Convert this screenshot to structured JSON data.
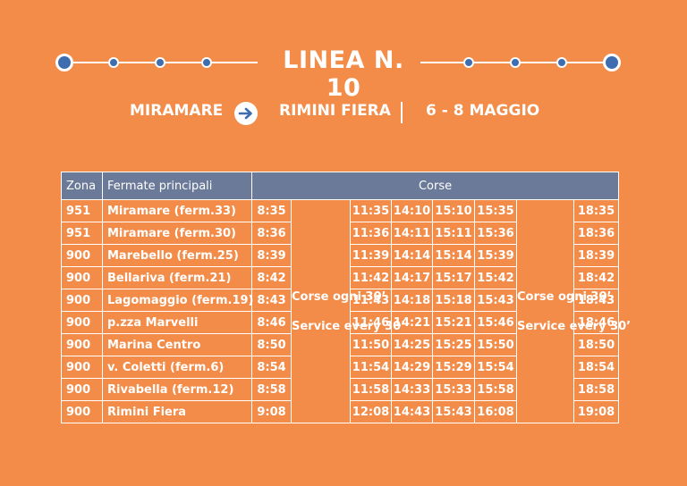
{
  "title": "LINEA N. 10",
  "route": {
    "from": "MIRAMARE",
    "to": "RIMINI FIERA",
    "dates": "6 - 8 MAGGIO",
    "arrow_icon": "arrow-right-icon"
  },
  "colors": {
    "background": "#F28C48",
    "header": "#6B7A99",
    "dot": "#3E6DB0"
  },
  "table": {
    "headers": {
      "zona": "Zona",
      "fermate": "Fermate principali",
      "corse": "Corse"
    },
    "freq_it": "Corse ogni 30’",
    "freq_en": "Service every 30’",
    "rows": [
      {
        "zona": "951",
        "stop": "Miramare (ferm.33)",
        "times": [
          "8:35",
          "11:35",
          "14:10",
          "15:10",
          "15:35",
          "18:35"
        ]
      },
      {
        "zona": "951",
        "stop": "Miramare (ferm.30)",
        "times": [
          "8:36",
          "11:36",
          "14:11",
          "15:11",
          "15:36",
          "18:36"
        ]
      },
      {
        "zona": "900",
        "stop": "Marebello (ferm.25)",
        "times": [
          "8:39",
          "11:39",
          "14:14",
          "15:14",
          "15:39",
          "18:39"
        ]
      },
      {
        "zona": "900",
        "stop": "Bellariva (ferm.21)",
        "times": [
          "8:42",
          "11:42",
          "14:17",
          "15:17",
          "15:42",
          "18:42"
        ]
      },
      {
        "zona": "900",
        "stop": "Lagomaggio (ferm.19)",
        "times": [
          "8:43",
          "11:43",
          "14:18",
          "15:18",
          "15:43",
          "18:43"
        ]
      },
      {
        "zona": "900",
        "stop": "p.zza Marvelli",
        "times": [
          "8:46",
          "11:46",
          "14:21",
          "15:21",
          "15:46",
          "18:46"
        ]
      },
      {
        "zona": "900",
        "stop": "Marina Centro",
        "times": [
          "8:50",
          "11:50",
          "14:25",
          "15:25",
          "15:50",
          "18:50"
        ]
      },
      {
        "zona": "900",
        "stop": "v. Coletti (ferm.6)",
        "times": [
          "8:54",
          "11:54",
          "14:29",
          "15:29",
          "15:54",
          "18:54"
        ]
      },
      {
        "zona": "900",
        "stop": "Rivabella (ferm.12)",
        "times": [
          "8:58",
          "11:58",
          "14:33",
          "15:33",
          "15:58",
          "18:58"
        ]
      },
      {
        "zona": "900",
        "stop": "Rimini Fiera",
        "times": [
          "9:08",
          "12:08",
          "14:43",
          "15:43",
          "16:08",
          "19:08"
        ]
      }
    ]
  }
}
